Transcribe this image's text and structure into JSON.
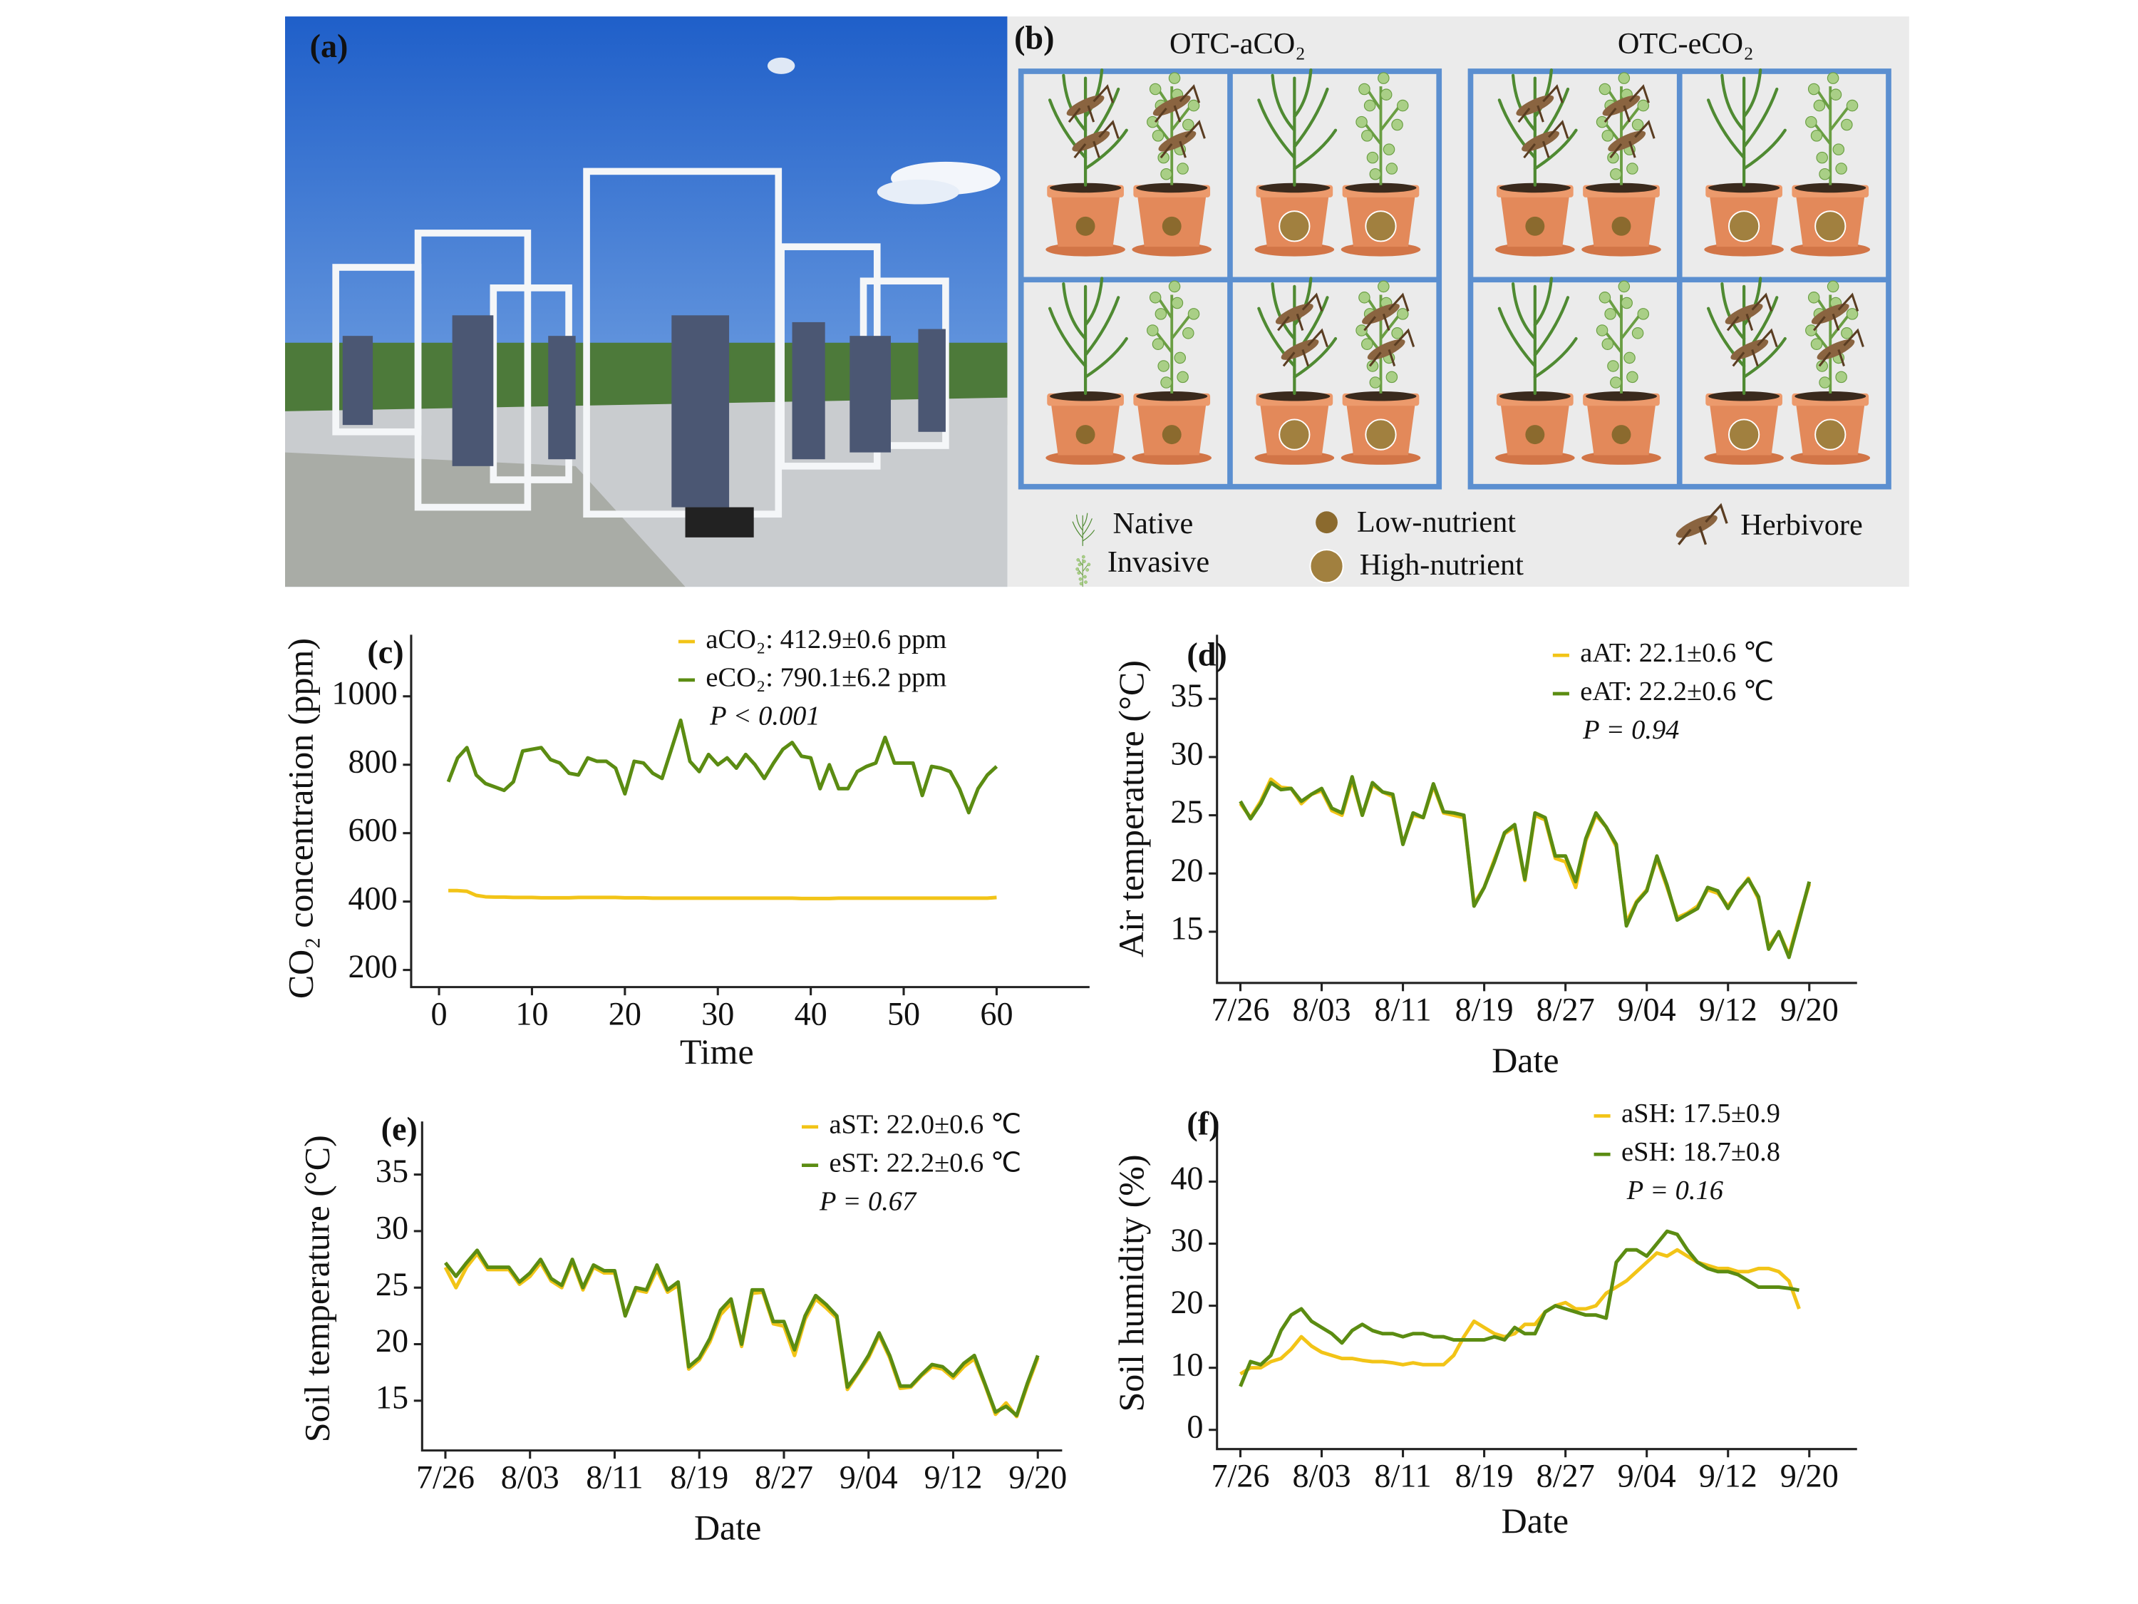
{
  "figure": {
    "panel_a": {
      "label": "(a)"
    },
    "panel_b": {
      "label": "(b)",
      "titles": [
        "OTC-aCO₂",
        "OTC-eCO₂"
      ],
      "legend": [
        "Native",
        "Invasive",
        "Low-nutrient",
        "High-nutrient",
        "Herbivore"
      ]
    }
  },
  "chart_data": [
    {
      "type": "line",
      "panel_label": "(c)",
      "xlabel": "Time",
      "ylabel": "CO₂ concentration (ppm)",
      "annotation": "P < 0.001",
      "xlim": [
        -3,
        70
      ],
      "ylim": [
        150,
        1180
      ],
      "xticks": [
        0,
        10,
        20,
        30,
        40,
        50,
        60
      ],
      "yticks": [
        200,
        400,
        600,
        800,
        1000
      ],
      "x": [
        1,
        2,
        3,
        4,
        5,
        6,
        7,
        8,
        9,
        10,
        11,
        12,
        13,
        14,
        15,
        16,
        17,
        18,
        19,
        20,
        21,
        22,
        23,
        24,
        25,
        26,
        27,
        28,
        29,
        30,
        31,
        32,
        33,
        34,
        35,
        36,
        37,
        38,
        39,
        40,
        41,
        42,
        43,
        44,
        45,
        46,
        47,
        48,
        49,
        50,
        51,
        52,
        53,
        54,
        55,
        56,
        57,
        58,
        59,
        60
      ],
      "series": [
        {
          "name": "aCO₂: 412.9±0.6 ppm",
          "color": "#f2c417",
          "values": [
            432,
            432,
            430,
            418,
            414,
            413,
            413,
            412,
            412,
            412,
            411,
            411,
            411,
            411,
            412,
            412,
            412,
            412,
            412,
            411,
            411,
            411,
            410,
            410,
            410,
            410,
            410,
            410,
            410,
            410,
            410,
            410,
            410,
            410,
            410,
            410,
            410,
            410,
            409,
            409,
            409,
            409,
            410,
            410,
            410,
            410,
            410,
            410,
            410,
            410,
            410,
            410,
            410,
            410,
            410,
            410,
            410,
            410,
            410,
            412
          ]
        },
        {
          "name": "eCO₂: 790.1±6.2 ppm",
          "color": "#5b8c12",
          "values": [
            750,
            820,
            850,
            770,
            745,
            735,
            725,
            750,
            840,
            845,
            850,
            815,
            805,
            775,
            770,
            820,
            810,
            810,
            790,
            715,
            810,
            805,
            775,
            760,
            845,
            930,
            810,
            780,
            830,
            800,
            820,
            790,
            830,
            800,
            760,
            805,
            845,
            865,
            825,
            820,
            730,
            800,
            730,
            730,
            780,
            795,
            805,
            880,
            805,
            805,
            805,
            710,
            795,
            790,
            780,
            730,
            660,
            730,
            770,
            795
          ]
        }
      ]
    },
    {
      "type": "line",
      "panel_label": "(d)",
      "xlabel": "Date",
      "ylabel": "Air temperature (°C)",
      "annotation": "P = 0.94",
      "xlim": [
        -2.3,
        60.7
      ],
      "ylim": [
        10.6,
        40.5
      ],
      "xticks": [
        {
          "value": 0,
          "label": "7/26"
        },
        {
          "value": 8,
          "label": "8/03"
        },
        {
          "value": 16,
          "label": "8/11"
        },
        {
          "value": 24,
          "label": "8/19"
        },
        {
          "value": 32,
          "label": "8/27"
        },
        {
          "value": 40,
          "label": "9/04"
        },
        {
          "value": 48,
          "label": "9/12"
        },
        {
          "value": 56,
          "label": "9/20"
        }
      ],
      "yticks": [
        15,
        20,
        25,
        30,
        35
      ],
      "x": [
        0,
        1,
        2,
        3,
        4,
        5,
        6,
        7,
        8,
        9,
        10,
        11,
        12,
        13,
        14,
        15,
        16,
        17,
        18,
        19,
        20,
        21,
        22,
        23,
        24,
        25,
        26,
        27,
        28,
        29,
        30,
        31,
        32,
        33,
        34,
        35,
        36,
        37,
        38,
        39,
        40,
        41,
        42,
        43,
        44,
        45,
        46,
        47,
        48,
        49,
        50,
        51,
        52,
        53,
        54,
        55,
        56
      ],
      "series": [
        {
          "name": "aAT: 22.1±0.6 ℃",
          "color": "#f2c417",
          "values": [
            26,
            24.8,
            26.2,
            28.1,
            27.4,
            27.3,
            26,
            26.8,
            27.1,
            25.4,
            25,
            28,
            25,
            27.6,
            27,
            26.6,
            22.6,
            25,
            24.8,
            27.5,
            25.2,
            25,
            24.8,
            17.4,
            18.8,
            21.2,
            23.4,
            24,
            19.4,
            25,
            24.6,
            21.3,
            21,
            18.8,
            22.8,
            25,
            24,
            22.3,
            15.8,
            17.6,
            18.6,
            21.3,
            18.8,
            16.2,
            16.6,
            17.2,
            18.6,
            18.3,
            17.2,
            18.4,
            19.6,
            17.8,
            13.7,
            15,
            13,
            16.2,
            19.1
          ]
        },
        {
          "name": "eAT: 22.2±0.6 ℃",
          "color": "#5b8c12",
          "values": [
            26.2,
            24.7,
            26,
            27.8,
            27.2,
            27.3,
            26.2,
            26.8,
            27.3,
            25.6,
            25.2,
            28.3,
            25,
            27.8,
            27,
            26.8,
            22.5,
            25.2,
            24.8,
            27.7,
            25.3,
            25.2,
            25,
            17.2,
            18.8,
            21,
            23.5,
            24.2,
            19.5,
            25.2,
            24.8,
            21.5,
            21.5,
            19.3,
            23,
            25.2,
            24,
            22.5,
            15.5,
            17.5,
            18.5,
            21.5,
            19,
            16,
            16.5,
            17,
            18.8,
            18.5,
            17,
            18.5,
            19.5,
            18,
            13.5,
            15,
            12.8,
            16,
            19.3
          ]
        }
      ]
    },
    {
      "type": "line",
      "panel_label": "(e)",
      "xlabel": "Date",
      "ylabel": "Soil temperature (°C)",
      "annotation": "P = 0.67",
      "xlim": [
        -2.2,
        58.3
      ],
      "ylim": [
        10.6,
        39.7
      ],
      "xticks": [
        {
          "value": 0,
          "label": "7/26"
        },
        {
          "value": 8,
          "label": "8/03"
        },
        {
          "value": 16,
          "label": "8/11"
        },
        {
          "value": 24,
          "label": "8/19"
        },
        {
          "value": 32,
          "label": "8/27"
        },
        {
          "value": 40,
          "label": "9/04"
        },
        {
          "value": 48,
          "label": "9/12"
        },
        {
          "value": 56,
          "label": "9/20"
        }
      ],
      "yticks": [
        15,
        20,
        25,
        30,
        35
      ],
      "x": [
        0,
        1,
        2,
        3,
        4,
        5,
        6,
        7,
        8,
        9,
        10,
        11,
        12,
        13,
        14,
        15,
        16,
        17,
        18,
        19,
        20,
        21,
        22,
        23,
        24,
        25,
        26,
        27,
        28,
        29,
        30,
        31,
        32,
        33,
        34,
        35,
        36,
        37,
        38,
        39,
        40,
        41,
        42,
        43,
        44,
        45,
        46,
        47,
        48,
        49,
        50,
        51,
        52,
        53,
        54,
        55,
        56
      ],
      "series": [
        {
          "name": "aST: 22.0±0.6 ℃",
          "color": "#f2c417",
          "values": [
            26.8,
            25,
            26.8,
            28,
            26.6,
            26.6,
            26.6,
            25.3,
            26,
            27.2,
            25.6,
            25,
            27.3,
            24.8,
            26.8,
            26.3,
            26.3,
            22.6,
            24.8,
            24.6,
            26.6,
            24.6,
            25.2,
            17.8,
            18.6,
            20.2,
            22.6,
            23.6,
            19.8,
            24.5,
            24.6,
            21.8,
            21.6,
            19,
            22.2,
            24,
            23.2,
            22.3,
            16,
            17.4,
            18.8,
            20.8,
            18.8,
            16.1,
            16.2,
            17.2,
            18,
            17.8,
            17,
            18,
            18.7,
            16.4,
            13.8,
            14.8,
            13.6,
            16.3,
            18.8
          ]
        },
        {
          "name": "eST: 22.2±0.6 ℃",
          "color": "#5b8c12",
          "values": [
            27.2,
            26,
            27.2,
            28.3,
            26.8,
            26.8,
            26.8,
            25.5,
            26.3,
            27.5,
            25.8,
            25.2,
            27.5,
            25,
            27,
            26.5,
            26.5,
            22.5,
            25,
            24.8,
            27,
            24.8,
            25.5,
            18,
            18.8,
            20.5,
            23,
            24,
            20,
            24.8,
            24.8,
            22,
            22,
            19.5,
            22.5,
            24.3,
            23.5,
            22.5,
            16.2,
            17.5,
            19,
            21,
            19,
            16.3,
            16.3,
            17.3,
            18.2,
            18,
            17.2,
            18.3,
            19,
            16.5,
            14,
            14.5,
            13.7,
            16.5,
            19
          ]
        }
      ]
    },
    {
      "type": "line",
      "panel_label": "(f)",
      "xlabel": "Date",
      "ylabel": "Soil humidity (%)",
      "annotation": "P = 0.16",
      "xlim": [
        -2.3,
        60.7
      ],
      "ylim": [
        -3.1,
        49.7
      ],
      "xticks": [
        {
          "value": 0,
          "label": "7/26"
        },
        {
          "value": 8,
          "label": "8/03"
        },
        {
          "value": 16,
          "label": "8/11"
        },
        {
          "value": 24,
          "label": "8/19"
        },
        {
          "value": 32,
          "label": "8/27"
        },
        {
          "value": 40,
          "label": "9/04"
        },
        {
          "value": 48,
          "label": "9/12"
        },
        {
          "value": 56,
          "label": "9/20"
        }
      ],
      "yticks": [
        0,
        10,
        20,
        30,
        40
      ],
      "x": [
        0,
        1,
        2,
        3,
        4,
        5,
        6,
        7,
        8,
        9,
        10,
        11,
        12,
        13,
        14,
        15,
        16,
        17,
        18,
        19,
        20,
        21,
        22,
        23,
        24,
        25,
        26,
        27,
        28,
        29,
        30,
        31,
        32,
        33,
        34,
        35,
        36,
        37,
        38,
        39,
        40,
        41,
        42,
        43,
        44,
        45,
        46,
        47,
        48,
        49,
        50,
        51,
        52,
        53,
        54,
        55
      ],
      "series": [
        {
          "name": "aSH: 17.5±0.9",
          "color": "#f2c417",
          "values": [
            9,
            10,
            10,
            11,
            11.5,
            13,
            15,
            13.5,
            12.5,
            12,
            11.5,
            11.5,
            11.2,
            11,
            11,
            10.8,
            10.5,
            10.8,
            10.5,
            10.5,
            10.5,
            12,
            15,
            17.5,
            16.5,
            15.5,
            15,
            15.5,
            17,
            17,
            19,
            20,
            20.5,
            19.5,
            19.5,
            20,
            22,
            23,
            24,
            25.5,
            27,
            28.5,
            28,
            29,
            28,
            27,
            26.5,
            26,
            26,
            25.5,
            25.5,
            26,
            26,
            25.5,
            24,
            19.5
          ]
        },
        {
          "name": "eSH: 18.7±0.8",
          "color": "#5b8c12",
          "values": [
            7,
            11,
            10.5,
            12,
            16,
            18.5,
            19.5,
            17.5,
            16.5,
            15.5,
            14,
            16,
            17,
            16,
            15.5,
            15.5,
            15,
            15.5,
            15.5,
            15,
            15,
            14.5,
            14.5,
            14.5,
            14.5,
            15,
            14.5,
            16.5,
            15.5,
            15.5,
            19,
            20,
            19.5,
            19,
            18.5,
            18.5,
            18,
            27,
            29,
            29,
            28,
            30,
            32,
            31.5,
            29,
            27,
            26,
            25.5,
            25.5,
            25,
            24,
            23,
            23,
            23,
            22.8,
            22.5
          ]
        }
      ]
    }
  ]
}
